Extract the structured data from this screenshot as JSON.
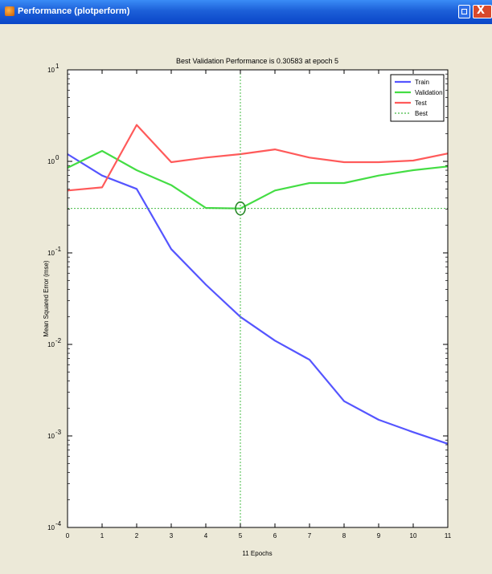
{
  "window": {
    "title": "Performance (plotperform)",
    "close_glyph": "X",
    "icons": {
      "app": "matlab-icon",
      "restore": "restore-icon",
      "close": "close-icon"
    }
  },
  "chart_data": {
    "type": "line",
    "title": "Best Validation Performance is 0.30583 at epoch 5",
    "xlabel": "11 Epochs",
    "ylabel": "Mean Squared Error  (mse)",
    "xlim": [
      0,
      11
    ],
    "ylim": [
      0.0001,
      10
    ],
    "yscale": "log",
    "x_ticks": [
      0,
      1,
      2,
      3,
      4,
      5,
      6,
      7,
      8,
      9,
      10,
      11
    ],
    "y_ticks": [
      {
        "value": 10,
        "base": "10",
        "exp": "1"
      },
      {
        "value": 1,
        "base": "10",
        "exp": "0"
      },
      {
        "value": 0.1,
        "base": "10",
        "exp": "-1"
      },
      {
        "value": 0.01,
        "base": "10",
        "exp": "-2"
      },
      {
        "value": 0.001,
        "base": "10",
        "exp": "-3"
      },
      {
        "value": 0.0001,
        "base": "10",
        "exp": "-4"
      }
    ],
    "grid": false,
    "legend_position": "top-right",
    "x": [
      0,
      1,
      2,
      3,
      4,
      5,
      6,
      7,
      8,
      9,
      10,
      11
    ],
    "series": [
      {
        "name": "Train",
        "color": "#5555ff",
        "style": "solid",
        "values": [
          1.2,
          0.7,
          0.5,
          0.11,
          0.045,
          0.02,
          0.011,
          0.0068,
          0.0024,
          0.0015,
          0.0011,
          0.00082
        ]
      },
      {
        "name": "Validation",
        "color": "#44dd44",
        "style": "solid",
        "values": [
          0.85,
          1.3,
          0.8,
          0.55,
          0.31,
          0.30583,
          0.48,
          0.58,
          0.58,
          0.7,
          0.8,
          0.88
        ]
      },
      {
        "name": "Test",
        "color": "#ff5a5a",
        "style": "solid",
        "values": [
          0.48,
          0.52,
          2.5,
          0.98,
          1.1,
          1.2,
          1.35,
          1.1,
          0.98,
          0.98,
          1.02,
          1.22
        ]
      },
      {
        "name": "Best",
        "color": "#44bb44",
        "style": "dotted",
        "best": {
          "x": 5,
          "y": 0.30583
        }
      }
    ]
  }
}
